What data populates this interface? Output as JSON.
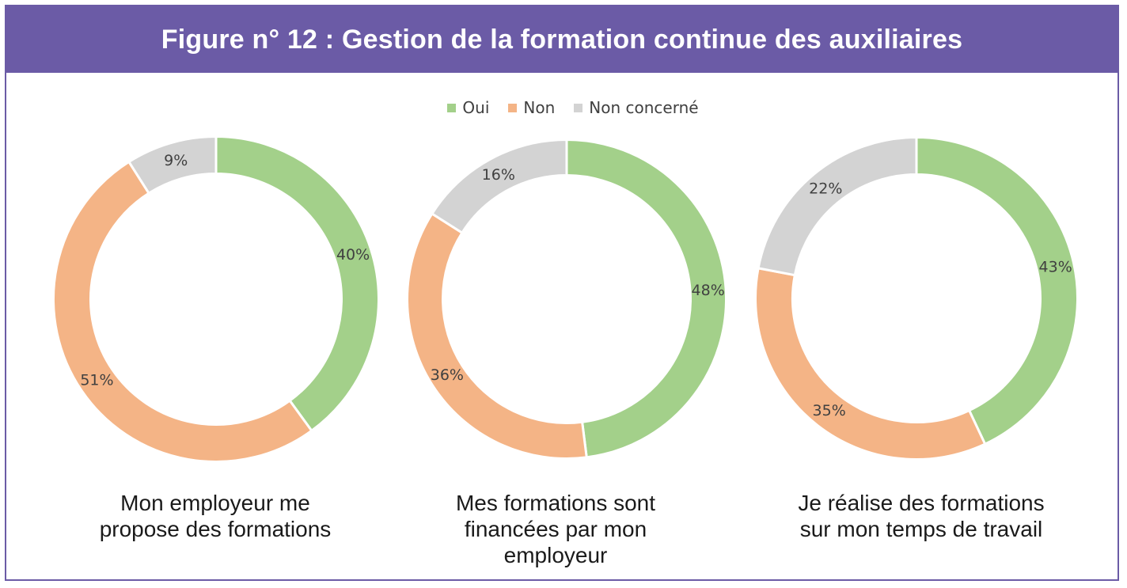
{
  "title": "Figure n° 12 : Gestion de la formation continue des auxiliaires",
  "legend": [
    {
      "label": "Oui",
      "color": "#a3d08a"
    },
    {
      "label": "Non",
      "color": "#f4b486"
    },
    {
      "label": "Non concerné",
      "color": "#d3d3d3"
    }
  ],
  "chart_data": [
    {
      "type": "pie",
      "variant": "donut",
      "title_lines": [
        "Mon employeur me",
        "propose des formations"
      ],
      "categories": [
        "Oui",
        "Non",
        "Non concerné"
      ],
      "values": [
        40,
        51,
        9
      ],
      "labels": [
        "40%",
        "51%",
        "9%"
      ]
    },
    {
      "type": "pie",
      "variant": "donut",
      "title_lines": [
        "Mes formations sont",
        "financées par mon",
        "employeur"
      ],
      "categories": [
        "Oui",
        "Non",
        "Non concerné"
      ],
      "values": [
        48,
        36,
        16
      ],
      "labels": [
        "48%",
        "36%",
        "16%"
      ]
    },
    {
      "type": "pie",
      "variant": "donut",
      "title_lines": [
        "Je réalise des formations",
        "sur mon temps de travail"
      ],
      "categories": [
        "Oui",
        "Non",
        "Non concerné"
      ],
      "values": [
        43,
        35,
        22
      ],
      "labels": [
        "43%",
        "35%",
        "22%"
      ]
    }
  ]
}
